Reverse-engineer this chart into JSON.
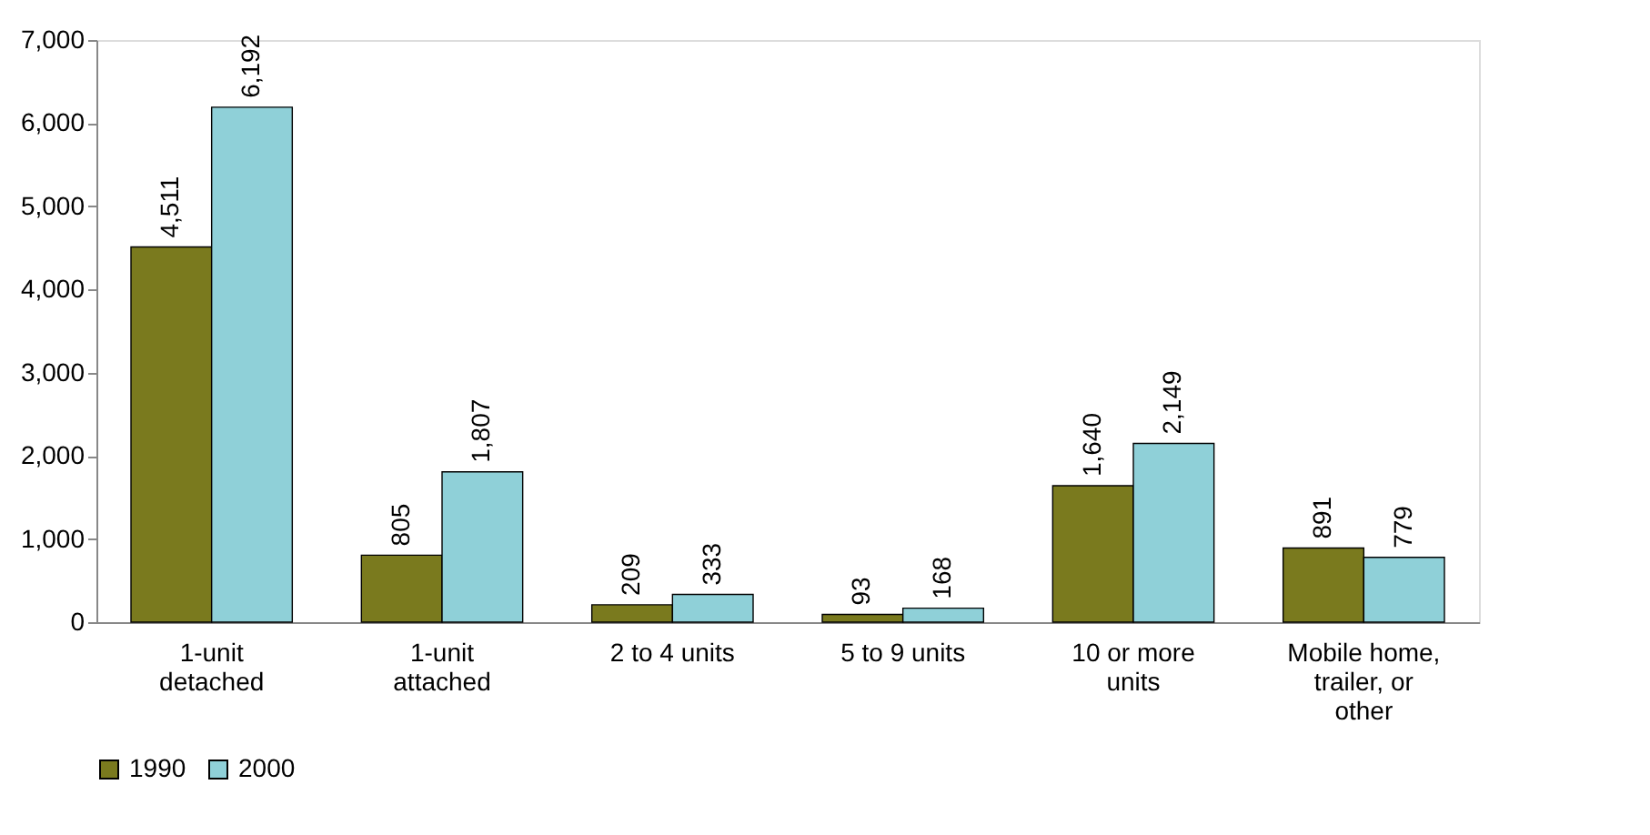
{
  "chart_data": {
    "type": "bar",
    "categories": [
      "1-unit detached",
      "1-unit attached",
      "2 to 4 units",
      "5 to 9 units",
      "10 or more units",
      "Mobile home, trailer, or other"
    ],
    "series": [
      {
        "name": "1990",
        "color": "#7a7a1e",
        "values": [
          4511,
          805,
          209,
          93,
          1640,
          891
        ],
        "value_labels": [
          "4,511",
          "805",
          "209",
          "93",
          "1,640",
          "891"
        ]
      },
      {
        "name": "2000",
        "color": "#8fd0d8",
        "values": [
          6192,
          1807,
          333,
          168,
          2149,
          779
        ],
        "value_labels": [
          "6,192",
          "1,807",
          "333",
          "168",
          "2,149",
          "779"
        ]
      }
    ],
    "ylim": [
      0,
      7000
    ],
    "yticks": [
      0,
      {
        "value": 1000,
        "label": "1,000"
      },
      {
        "value": 2000,
        "label": "2,000"
      },
      {
        "value": 3000,
        "label": "3,000"
      },
      {
        "value": 4000,
        "label": "4,000"
      },
      {
        "value": 5000,
        "label": "5,000"
      },
      {
        "value": 6000,
        "label": "6,000"
      },
      {
        "value": 7000,
        "label": "7,000"
      }
    ],
    "grid": false,
    "legend": "bottom"
  }
}
